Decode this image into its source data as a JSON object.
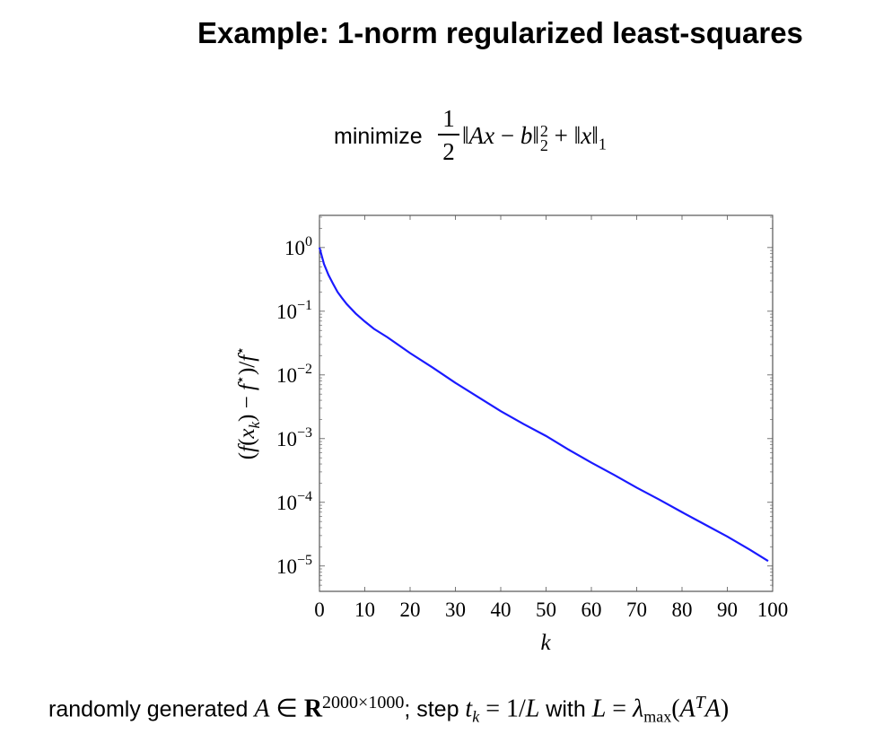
{
  "title": "Example: 1-norm regularized least-squares",
  "formula": {
    "keyword": "minimize",
    "frac_num": "1",
    "frac_den": "2",
    "term1_open": "‖",
    "term1_A": "A",
    "term1_x": "x",
    "term1_minus": " − ",
    "term1_b": "b",
    "term1_close": "‖",
    "term1_sup": "2",
    "term1_sub": "2",
    "plus": " + ",
    "term2_open": "‖",
    "term2_x": "x",
    "term2_close": "‖",
    "term2_sub": "1"
  },
  "footer": {
    "prefix": "randomly generated ",
    "A": "A",
    "in": " ∈ ",
    "R": "R",
    "dims": "2000×1000",
    "semicolon": "; step ",
    "t": "t",
    "t_sub": "k",
    "eq1": " = 1/",
    "L1": "L",
    "with": " with ",
    "L2": "L",
    "eq2": " = ",
    "lambda": "λ",
    "lambda_sub": "max",
    "paren_open": "(",
    "AT_A": "A",
    "AT_sup": "T",
    "AT_A2": "A",
    "paren_close": ")"
  },
  "chart_data": {
    "type": "line",
    "title": "",
    "xlabel": "k",
    "ylabel": "(f(x_k) − f*)/f*",
    "ylabel_parts": {
      "open": "(",
      "f": "f",
      "paren": "(",
      "x": "x",
      "x_sub": "k",
      "mid": ") − ",
      "fstar": "f",
      "star": "⋆",
      "close": ")/",
      "fstar2": "f",
      "star2": "⋆"
    },
    "xlim": [
      0,
      100
    ],
    "ylim": [
      4e-06,
      3.2
    ],
    "yscale": "log",
    "xticks": [
      0,
      10,
      20,
      30,
      40,
      50,
      60,
      70,
      80,
      90,
      100
    ],
    "yticks": [
      {
        "value": 1,
        "base": "10",
        "exp": "0"
      },
      {
        "value": 0.1,
        "base": "10",
        "exp": "−1"
      },
      {
        "value": 0.01,
        "base": "10",
        "exp": "−2"
      },
      {
        "value": 0.001,
        "base": "10",
        "exp": "−3"
      },
      {
        "value": 0.0001,
        "base": "10",
        "exp": "−4"
      },
      {
        "value": 1e-05,
        "base": "10",
        "exp": "−5"
      }
    ],
    "grid": false,
    "line_color": "#1a1aff",
    "series": [
      {
        "x": [
          0,
          1,
          2,
          3,
          4,
          5,
          6,
          8,
          10,
          12,
          15,
          20,
          25,
          30,
          35,
          40,
          45,
          50,
          55,
          60,
          65,
          70,
          75,
          80,
          85,
          90,
          95,
          99
        ],
        "y": [
          1.0,
          0.55,
          0.37,
          0.27,
          0.2,
          0.16,
          0.13,
          0.092,
          0.069,
          0.053,
          0.039,
          0.022,
          0.013,
          0.0075,
          0.0045,
          0.0027,
          0.0017,
          0.0011,
          0.00067,
          0.00042,
          0.00027,
          0.00017,
          0.00011,
          7e-05,
          4.5e-05,
          2.9e-05,
          1.8e-05,
          1.2e-05
        ]
      }
    ]
  }
}
